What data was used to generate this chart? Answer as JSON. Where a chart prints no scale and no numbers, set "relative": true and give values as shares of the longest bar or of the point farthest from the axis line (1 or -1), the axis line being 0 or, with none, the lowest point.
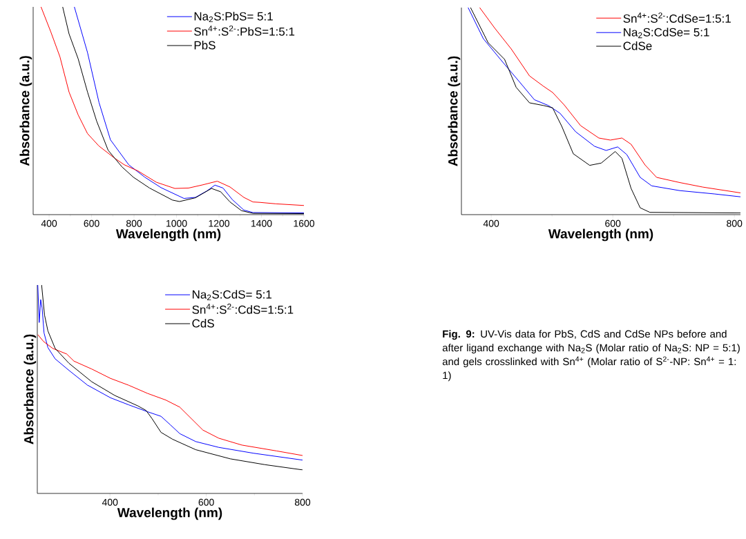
{
  "chart_data": [
    {
      "type": "line",
      "relative": true,
      "xlabel": "Wavelength (nm)",
      "ylabel": "Absorbance (a.u.)",
      "xlim": [
        325,
        1600
      ],
      "xticks": [
        400,
        600,
        800,
        1000,
        1200,
        1400,
        1600
      ],
      "legend": "top right",
      "line_style": "solid",
      "series": [
        {
          "name": "Na$_{2}$S:PbS= 5:1",
          "color": "#0000ff",
          "x": [
            519,
            581,
            635,
            689,
            775,
            851,
            927,
            1035,
            1089,
            1143,
            1181,
            1219,
            1263,
            1317,
            1360,
            1600
          ],
          "values": [
            1,
            0.78,
            0.54,
            0.36,
            0.24,
            0.18,
            0.13,
            0.078,
            0.083,
            0.114,
            0.142,
            0.128,
            0.072,
            0.022,
            0.01,
            0.008
          ]
        },
        {
          "name": "Sn$^{4+}$:S$^{2-}$:PbS=1:5:1",
          "color": "#ff0000",
          "x": [
            362,
            408,
            451,
            494,
            537,
            581,
            635,
            711,
            754,
            819,
            905,
            992,
            1057,
            1122,
            1192,
            1252,
            1317,
            1360,
            1392,
            1468,
            1600
          ],
          "values": [
            1,
            0.88,
            0.76,
            0.59,
            0.48,
            0.39,
            0.33,
            0.27,
            0.24,
            0.21,
            0.156,
            0.126,
            0.128,
            0.143,
            0.161,
            0.133,
            0.083,
            0.061,
            0.059,
            0.052,
            0.044
          ]
        },
        {
          "name": "PbS",
          "color": "#000000",
          "x": [
            464,
            494,
            537,
            581,
            624,
            678,
            743,
            797,
            873,
            981,
            1014,
            1089,
            1165,
            1208,
            1252,
            1306,
            1360,
            1600
          ],
          "values": [
            1,
            0.87,
            0.75,
            0.59,
            0.45,
            0.31,
            0.23,
            0.18,
            0.128,
            0.07,
            0.063,
            0.081,
            0.126,
            0.11,
            0.061,
            0.019,
            0.006,
            0.005
          ]
        }
      ]
    },
    {
      "type": "line",
      "relative": true,
      "xlabel": "Wavelength (nm)",
      "ylabel": "Absorbance (a.u.)",
      "xlim": [
        351,
        810
      ],
      "xticks": [
        400,
        600,
        800
      ],
      "legend": "top right",
      "line_style": "solid",
      "series": [
        {
          "name": "Sn$^{4+}$:S$^{2-}$:CdSe=1:5:1",
          "color": "#ff0000",
          "x": [
            381,
            406,
            433,
            463,
            486,
            501,
            520,
            547,
            577,
            596,
            615,
            630,
            653,
            672,
            710,
            748,
            810
          ],
          "values": [
            1,
            0.9,
            0.8,
            0.67,
            0.62,
            0.59,
            0.53,
            0.43,
            0.37,
            0.36,
            0.37,
            0.34,
            0.24,
            0.18,
            0.155,
            0.133,
            0.105
          ]
        },
        {
          "name": "Na$_{2}$S:CdSe= 5:1",
          "color": "#0000ff",
          "x": [
            362,
            387,
            418,
            444,
            471,
            494,
            513,
            539,
            570,
            589,
            608,
            623,
            645,
            664,
            710,
            767,
            810
          ],
          "values": [
            1,
            0.85,
            0.74,
            0.65,
            0.555,
            0.527,
            0.49,
            0.4,
            0.33,
            0.31,
            0.327,
            0.29,
            0.18,
            0.139,
            0.116,
            0.1,
            0.086
          ]
        },
        {
          "name": "CdSe",
          "color": "#000000",
          "x": [
            366,
            395,
            422,
            441,
            463,
            486,
            501,
            516,
            535,
            562,
            581,
            604,
            615,
            630,
            645,
            661,
            810
          ],
          "values": [
            1,
            0.83,
            0.75,
            0.615,
            0.54,
            0.527,
            0.516,
            0.427,
            0.294,
            0.238,
            0.249,
            0.305,
            0.272,
            0.127,
            0.033,
            0.011,
            0.008
          ]
        }
      ]
    },
    {
      "type": "line",
      "relative": true,
      "xlabel": "Wavelength (nm)",
      "ylabel": "Absorbance (a.u.)",
      "xlim": [
        249,
        800
      ],
      "xticks": [
        400,
        600,
        800
      ],
      "legend": "top right",
      "line_style": "solid",
      "annotations": [
        "**Fig. 9:** UV-Vis data for PbS, CdS and CdSe NPs before and after ligand exchange with Na$_{2}$S (Molar ratio of Na$_{2}$S: NP = 5:1) and gels crosslinked with Sn$^{4+}$ (Molar ratio of S$^{2-}$-NP: Sn$^{4+}$ = 1: 1)"
      ],
      "series": [
        {
          "name": "Na$_{2}$S:CdS= 5:1",
          "color": "#0000ff",
          "x": [
            250,
            253,
            256,
            259,
            263,
            271,
            286,
            315,
            353,
            401,
            439,
            478,
            506,
            525,
            545,
            578,
            626,
            698,
            800
          ],
          "values": [
            1,
            0.82,
            0.93,
            0.89,
            0.77,
            0.7,
            0.646,
            0.59,
            0.52,
            0.459,
            0.425,
            0.392,
            0.37,
            0.33,
            0.287,
            0.249,
            0.221,
            0.193,
            0.16
          ]
        },
        {
          "name": "Sn$^{4+}$:S$^{2-}$:CdS=1:5:1",
          "color": "#ff0000",
          "x": [
            250,
            262,
            281,
            310,
            325,
            362,
            401,
            439,
            478,
            516,
            545,
            569,
            593,
            626,
            674,
            746,
            800
          ],
          "values": [
            0.762,
            0.729,
            0.696,
            0.669,
            0.635,
            0.597,
            0.552,
            0.519,
            0.48,
            0.448,
            0.414,
            0.359,
            0.304,
            0.265,
            0.232,
            0.204,
            0.182
          ]
        },
        {
          "name": "CdS",
          "color": "#000000",
          "x": [
            258,
            264,
            271,
            286,
            315,
            362,
            410,
            458,
            475,
            487,
            506,
            530,
            578,
            650,
            722,
            800
          ],
          "values": [
            1,
            0.856,
            0.78,
            0.696,
            0.624,
            0.536,
            0.47,
            0.42,
            0.398,
            0.36,
            0.293,
            0.26,
            0.21,
            0.166,
            0.138,
            0.113
          ]
        }
      ]
    }
  ]
}
